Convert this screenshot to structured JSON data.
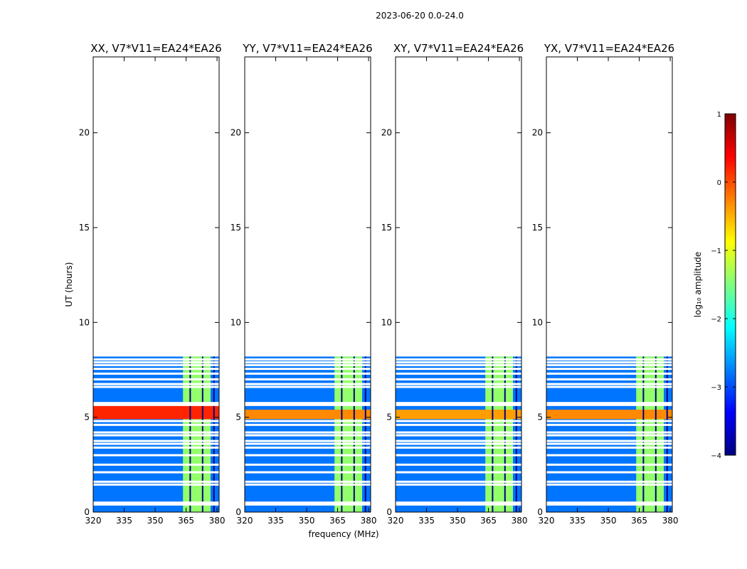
{
  "figure": {
    "suptitle": "2023-06-20 0.0-24.0"
  },
  "chart_data": {
    "type": "heatmap",
    "x": {
      "label": "frequency (MHz)",
      "range": [
        320,
        381
      ],
      "ticks": [
        320,
        335,
        350,
        365,
        380
      ]
    },
    "y": {
      "label": "UT (hours)",
      "range": [
        0,
        24
      ],
      "ticks": [
        0,
        5,
        10,
        15,
        20
      ]
    },
    "data_extent_hours": [
      0,
      8.2
    ],
    "rfi_band_mhz": [
      363.5,
      381
    ],
    "rfi_channel_gaps_mhz": [
      367,
      373,
      378.5
    ],
    "flagged_rows_hours": [
      0.4,
      0.5,
      1.45,
      1.6,
      2.1,
      2.5,
      3.0,
      3.4,
      3.6,
      3.75,
      4.05,
      4.2,
      4.6,
      4.8,
      5.65,
      5.75,
      6.6,
      6.75,
      7.0,
      7.3,
      7.55,
      7.75,
      7.9,
      8.05
    ],
    "background_level": -2.8,
    "rfi_level": -1.4,
    "peak_level": 0.3,
    "colorbar": {
      "label": "log₁₀ amplitude",
      "range": [
        -4,
        1
      ],
      "ticks": [
        1,
        0,
        -1,
        -2,
        -3,
        -4
      ],
      "colors": [
        "#00007f",
        "#0000ff",
        "#007fff",
        "#00ffff",
        "#7fff7f",
        "#ffff00",
        "#ff7f00",
        "#ff0000",
        "#7f0000"
      ]
    },
    "panels": [
      {
        "title": "XX, V7*V11=EA24*EA26",
        "peak_band_hours": [
          4.9,
          5.6
        ],
        "peak_level": 0.2
      },
      {
        "title": "YY, V7*V11=EA24*EA26",
        "peak_band_hours": [
          4.9,
          5.4
        ],
        "peak_level": -0.3
      },
      {
        "title": "XY, V7*V11=EA24*EA26",
        "peak_band_hours": [
          4.9,
          5.4
        ],
        "peak_level": -0.4
      },
      {
        "title": "YX, V7*V11=EA24*EA26",
        "peak_band_hours": [
          4.9,
          5.4
        ],
        "peak_level": -0.3
      }
    ]
  }
}
